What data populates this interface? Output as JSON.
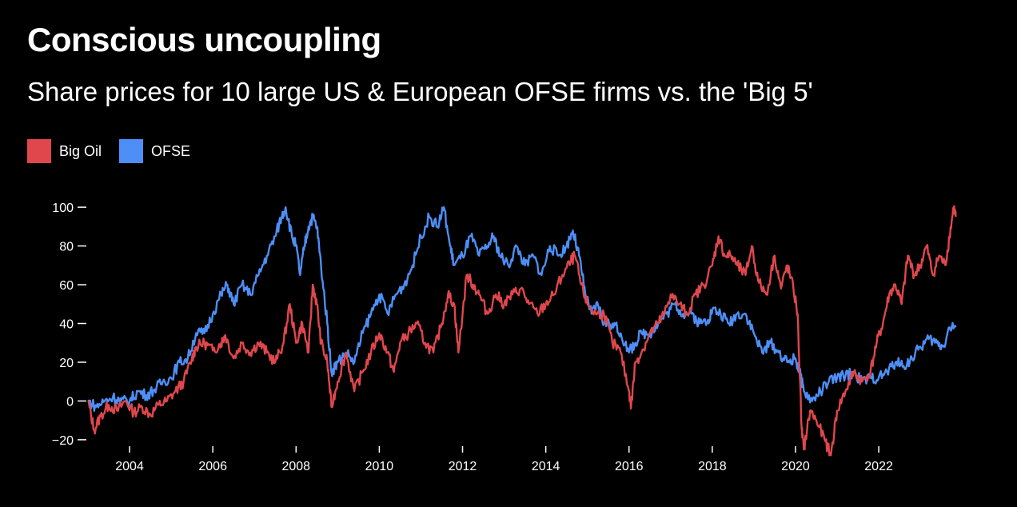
{
  "title": "Conscious uncoupling",
  "subtitle": "Share prices for 10 large US & European OFSE firms vs. the 'Big 5'",
  "chart_data": {
    "type": "line",
    "title": "Conscious uncoupling",
    "subtitle": "Share prices for 10 large US & European OFSE firms vs. the 'Big 5'",
    "xlabel": "",
    "ylabel": "",
    "xlim": [
      2003.0,
      2023.9
    ],
    "ylim": [
      -25,
      105
    ],
    "x_ticks": [
      2004,
      2006,
      2008,
      2010,
      2012,
      2014,
      2016,
      2018,
      2020,
      2022
    ],
    "x_tick_labels": [
      "2004",
      "2006",
      "2008",
      "2010",
      "2012",
      "2014",
      "2016",
      "2018",
      "2020",
      "2022"
    ],
    "y_ticks": [
      100,
      80,
      60,
      40,
      20,
      0,
      -20
    ],
    "y_tick_labels": [
      "100",
      "80",
      "60",
      "40",
      "20",
      "0",
      "−20"
    ],
    "grid": false,
    "legend_position": "top-left",
    "series": [
      {
        "name": "Big Oil",
        "color": "#e0474c",
        "points": [
          [
            2003.0,
            0
          ],
          [
            2003.15,
            -15
          ],
          [
            2003.3,
            -8
          ],
          [
            2003.5,
            -2
          ],
          [
            2003.7,
            -5
          ],
          [
            2003.9,
            0
          ],
          [
            2004.1,
            -6
          ],
          [
            2004.3,
            -3
          ],
          [
            2004.5,
            -7
          ],
          [
            2004.7,
            -2
          ],
          [
            2004.9,
            0
          ],
          [
            2005.1,
            5
          ],
          [
            2005.3,
            10
          ],
          [
            2005.5,
            22
          ],
          [
            2005.6,
            28
          ],
          [
            2005.8,
            30
          ],
          [
            2006.0,
            26
          ],
          [
            2006.2,
            30
          ],
          [
            2006.3,
            34
          ],
          [
            2006.5,
            22
          ],
          [
            2006.7,
            30
          ],
          [
            2006.9,
            25
          ],
          [
            2007.1,
            30
          ],
          [
            2007.3,
            25
          ],
          [
            2007.5,
            20
          ],
          [
            2007.7,
            30
          ],
          [
            2007.85,
            50
          ],
          [
            2008.0,
            30
          ],
          [
            2008.15,
            40
          ],
          [
            2008.3,
            25
          ],
          [
            2008.4,
            60
          ],
          [
            2008.5,
            50
          ],
          [
            2008.6,
            30
          ],
          [
            2008.75,
            20
          ],
          [
            2008.85,
            -3
          ],
          [
            2009.0,
            10
          ],
          [
            2009.2,
            25
          ],
          [
            2009.4,
            5
          ],
          [
            2009.6,
            15
          ],
          [
            2009.8,
            25
          ],
          [
            2010.0,
            35
          ],
          [
            2010.2,
            25
          ],
          [
            2010.35,
            15
          ],
          [
            2010.5,
            30
          ],
          [
            2010.7,
            35
          ],
          [
            2010.9,
            40
          ],
          [
            2011.1,
            30
          ],
          [
            2011.3,
            25
          ],
          [
            2011.5,
            40
          ],
          [
            2011.65,
            55
          ],
          [
            2011.8,
            50
          ],
          [
            2011.9,
            25
          ],
          [
            2012.1,
            65
          ],
          [
            2012.25,
            60
          ],
          [
            2012.4,
            55
          ],
          [
            2012.6,
            45
          ],
          [
            2012.8,
            55
          ],
          [
            2013.0,
            50
          ],
          [
            2013.2,
            55
          ],
          [
            2013.4,
            58
          ],
          [
            2013.6,
            50
          ],
          [
            2013.8,
            45
          ],
          [
            2014.0,
            50
          ],
          [
            2014.2,
            55
          ],
          [
            2014.4,
            65
          ],
          [
            2014.6,
            72
          ],
          [
            2014.7,
            75
          ],
          [
            2014.85,
            60
          ],
          [
            2015.0,
            50
          ],
          [
            2015.2,
            45
          ],
          [
            2015.4,
            45
          ],
          [
            2015.6,
            30
          ],
          [
            2015.8,
            25
          ],
          [
            2016.0,
            5
          ],
          [
            2016.05,
            -3
          ],
          [
            2016.15,
            20
          ],
          [
            2016.3,
            25
          ],
          [
            2016.5,
            35
          ],
          [
            2016.7,
            40
          ],
          [
            2016.85,
            45
          ],
          [
            2017.0,
            55
          ],
          [
            2017.2,
            50
          ],
          [
            2017.4,
            45
          ],
          [
            2017.6,
            55
          ],
          [
            2017.8,
            60
          ],
          [
            2018.0,
            70
          ],
          [
            2018.15,
            85
          ],
          [
            2018.3,
            75
          ],
          [
            2018.45,
            75
          ],
          [
            2018.6,
            70
          ],
          [
            2018.8,
            65
          ],
          [
            2018.95,
            80
          ],
          [
            2019.1,
            62
          ],
          [
            2019.3,
            55
          ],
          [
            2019.5,
            75
          ],
          [
            2019.65,
            58
          ],
          [
            2019.8,
            70
          ],
          [
            2019.95,
            58
          ],
          [
            2020.05,
            45
          ],
          [
            2020.15,
            -15
          ],
          [
            2020.2,
            -25
          ],
          [
            2020.35,
            -5
          ],
          [
            2020.5,
            -10
          ],
          [
            2020.7,
            -20
          ],
          [
            2020.85,
            -28
          ],
          [
            2021.0,
            -5
          ],
          [
            2021.2,
            5
          ],
          [
            2021.4,
            15
          ],
          [
            2021.6,
            10
          ],
          [
            2021.8,
            15
          ],
          [
            2021.95,
            30
          ],
          [
            2022.1,
            40
          ],
          [
            2022.25,
            55
          ],
          [
            2022.4,
            60
          ],
          [
            2022.55,
            50
          ],
          [
            2022.7,
            75
          ],
          [
            2022.85,
            65
          ],
          [
            2023.0,
            70
          ],
          [
            2023.15,
            80
          ],
          [
            2023.3,
            65
          ],
          [
            2023.45,
            75
          ],
          [
            2023.6,
            70
          ],
          [
            2023.7,
            85
          ],
          [
            2023.8,
            100
          ],
          [
            2023.85,
            95
          ]
        ]
      },
      {
        "name": "OFSE",
        "color": "#4d8ff6",
        "points": [
          [
            2003.0,
            0
          ],
          [
            2003.2,
            -3
          ],
          [
            2003.4,
            0
          ],
          [
            2003.6,
            2
          ],
          [
            2003.8,
            0
          ],
          [
            2004.0,
            0
          ],
          [
            2004.2,
            5
          ],
          [
            2004.4,
            3
          ],
          [
            2004.6,
            6
          ],
          [
            2004.8,
            10
          ],
          [
            2005.0,
            12
          ],
          [
            2005.2,
            20
          ],
          [
            2005.4,
            22
          ],
          [
            2005.6,
            35
          ],
          [
            2005.8,
            35
          ],
          [
            2006.0,
            45
          ],
          [
            2006.2,
            55
          ],
          [
            2006.35,
            60
          ],
          [
            2006.5,
            50
          ],
          [
            2006.7,
            60
          ],
          [
            2006.9,
            55
          ],
          [
            2007.1,
            65
          ],
          [
            2007.3,
            75
          ],
          [
            2007.5,
            85
          ],
          [
            2007.65,
            95
          ],
          [
            2007.75,
            100
          ],
          [
            2007.9,
            85
          ],
          [
            2008.0,
            80
          ],
          [
            2008.1,
            65
          ],
          [
            2008.2,
            80
          ],
          [
            2008.3,
            90
          ],
          [
            2008.4,
            95
          ],
          [
            2008.5,
            90
          ],
          [
            2008.6,
            70
          ],
          [
            2008.75,
            40
          ],
          [
            2008.85,
            15
          ],
          [
            2009.0,
            20
          ],
          [
            2009.2,
            25
          ],
          [
            2009.4,
            20
          ],
          [
            2009.6,
            35
          ],
          [
            2009.8,
            45
          ],
          [
            2010.0,
            55
          ],
          [
            2010.2,
            45
          ],
          [
            2010.4,
            55
          ],
          [
            2010.6,
            60
          ],
          [
            2010.8,
            70
          ],
          [
            2011.0,
            85
          ],
          [
            2011.2,
            95
          ],
          [
            2011.4,
            90
          ],
          [
            2011.55,
            100
          ],
          [
            2011.7,
            80
          ],
          [
            2011.8,
            70
          ],
          [
            2012.0,
            75
          ],
          [
            2012.2,
            85
          ],
          [
            2012.4,
            75
          ],
          [
            2012.6,
            80
          ],
          [
            2012.75,
            85
          ],
          [
            2012.9,
            75
          ],
          [
            2013.1,
            70
          ],
          [
            2013.3,
            80
          ],
          [
            2013.5,
            70
          ],
          [
            2013.7,
            75
          ],
          [
            2013.9,
            65
          ],
          [
            2014.1,
            80
          ],
          [
            2014.3,
            75
          ],
          [
            2014.5,
            80
          ],
          [
            2014.65,
            88
          ],
          [
            2014.8,
            75
          ],
          [
            2014.95,
            55
          ],
          [
            2015.1,
            45
          ],
          [
            2015.25,
            50
          ],
          [
            2015.4,
            40
          ],
          [
            2015.6,
            40
          ],
          [
            2015.8,
            35
          ],
          [
            2016.0,
            25
          ],
          [
            2016.15,
            30
          ],
          [
            2016.3,
            35
          ],
          [
            2016.5,
            35
          ],
          [
            2016.7,
            40
          ],
          [
            2016.9,
            45
          ],
          [
            2017.1,
            50
          ],
          [
            2017.3,
            45
          ],
          [
            2017.5,
            45
          ],
          [
            2017.7,
            40
          ],
          [
            2017.9,
            42
          ],
          [
            2018.0,
            47
          ],
          [
            2018.2,
            45
          ],
          [
            2018.4,
            40
          ],
          [
            2018.6,
            45
          ],
          [
            2018.8,
            45
          ],
          [
            2019.0,
            35
          ],
          [
            2019.2,
            25
          ],
          [
            2019.4,
            30
          ],
          [
            2019.6,
            25
          ],
          [
            2019.8,
            20
          ],
          [
            2020.0,
            22
          ],
          [
            2020.1,
            15
          ],
          [
            2020.2,
            5
          ],
          [
            2020.4,
            0
          ],
          [
            2020.6,
            5
          ],
          [
            2020.8,
            10
          ],
          [
            2021.0,
            12
          ],
          [
            2021.2,
            13
          ],
          [
            2021.4,
            15
          ],
          [
            2021.6,
            10
          ],
          [
            2021.8,
            12
          ],
          [
            2022.0,
            12
          ],
          [
            2022.2,
            15
          ],
          [
            2022.4,
            20
          ],
          [
            2022.6,
            18
          ],
          [
            2022.8,
            22
          ],
          [
            2023.0,
            28
          ],
          [
            2023.2,
            32
          ],
          [
            2023.4,
            30
          ],
          [
            2023.55,
            28
          ],
          [
            2023.7,
            38
          ],
          [
            2023.85,
            38
          ]
        ]
      }
    ]
  },
  "colors": {
    "background": "#000000",
    "text": "#ffffff",
    "big_oil": "#e0474c",
    "ofse": "#4d8ff6"
  }
}
